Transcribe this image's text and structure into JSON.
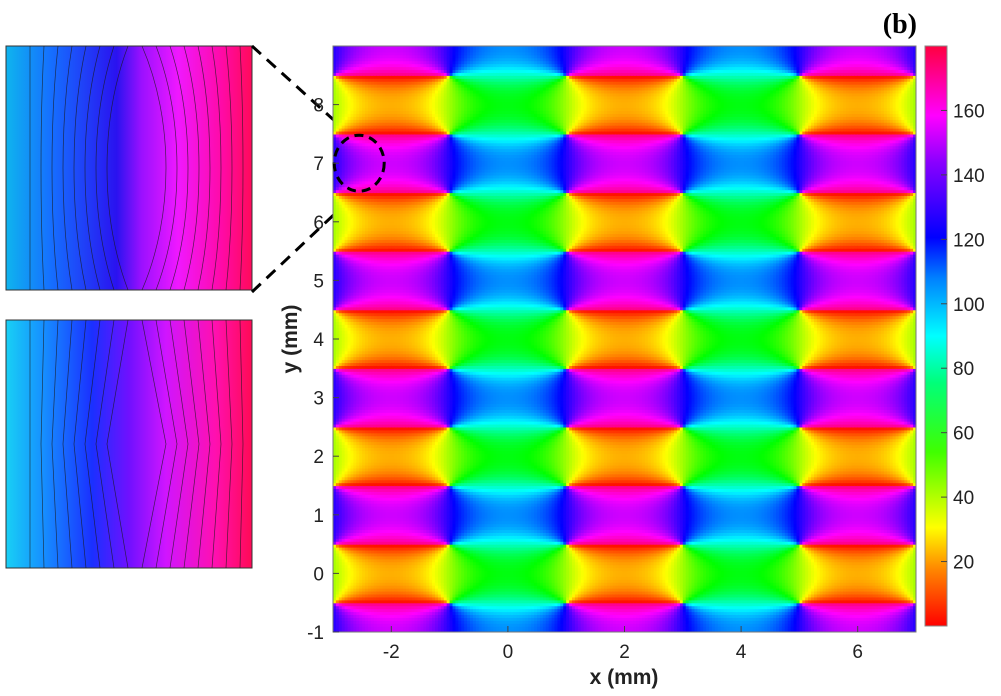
{
  "panel_label": "(b)",
  "chart_data": {
    "type": "heatmap",
    "title": "",
    "xlabel": "x (mm)",
    "ylabel": "y (mm)",
    "xlim": [
      -3,
      7
    ],
    "ylim": [
      -1,
      9
    ],
    "xticks": [
      -2,
      0,
      2,
      4,
      6
    ],
    "yticks": [
      -1,
      0,
      1,
      2,
      3,
      4,
      5,
      6,
      7,
      8
    ],
    "colorbar": {
      "range": [
        0,
        180
      ],
      "ticks": [
        20,
        40,
        60,
        80,
        100,
        120,
        140,
        160
      ],
      "colormap": "hsv"
    },
    "pattern": {
      "description_values": "periodic phase field",
      "period_x": 2,
      "period_y": 1,
      "vortex_centers_x": [
        -3,
        -1,
        1,
        3,
        5,
        7
      ],
      "vortex_centers_y": [
        -0.5,
        0.5,
        1.5,
        2.5,
        3.5,
        4.5,
        5.5,
        6.5,
        7.5,
        8.5
      ]
    },
    "highlight_ellipse": {
      "x": -2.55,
      "y": 7.0
    },
    "insets": [
      {
        "colormap_range": [
          95,
          175
        ],
        "style": "contour-curved"
      },
      {
        "colormap_range": [
          95,
          175
        ],
        "style": "contour-angled"
      }
    ]
  }
}
